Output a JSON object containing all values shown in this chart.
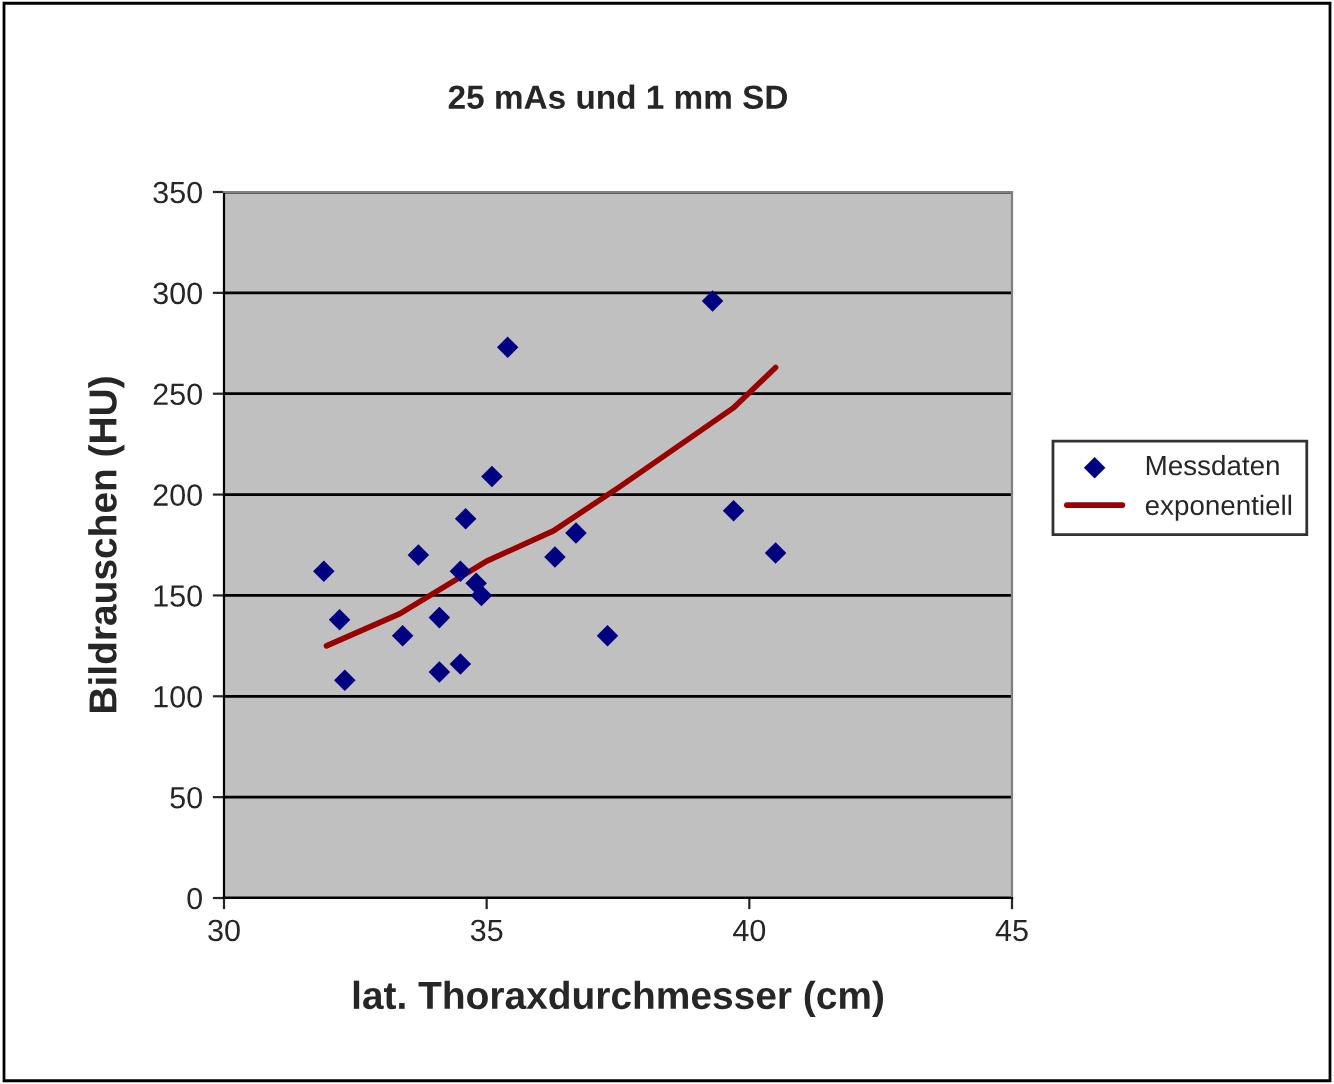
{
  "chart_data": {
    "type": "scatter",
    "title": "25 mAs und 1 mm SD",
    "xlabel": "lat. Thoraxdurchmesser (cm)",
    "ylabel": "Bildrauschen (HU)",
    "xlim": [
      30,
      45
    ],
    "xticks": [
      30,
      35,
      40,
      45
    ],
    "ylim": [
      0,
      350
    ],
    "yticks": [
      0,
      50,
      100,
      150,
      200,
      250,
      300,
      350
    ],
    "grid": "y",
    "legend": "right",
    "series": [
      {
        "name": "Messdaten",
        "marker": "diamond",
        "color": "#000080",
        "x": [
          31.9,
          32.2,
          32.3,
          33.4,
          33.7,
          34.1,
          34.1,
          34.5,
          34.5,
          34.6,
          34.8,
          34.9,
          35.1,
          35.4,
          36.3,
          36.7,
          37.3,
          39.3,
          39.7,
          40.5
        ],
        "values": [
          162,
          138,
          108,
          130,
          170,
          139,
          112,
          162,
          116,
          188,
          156,
          150,
          209,
          273,
          169,
          181,
          130,
          296,
          192,
          171
        ]
      },
      {
        "name": "exponentiell",
        "type": "line",
        "line_style": "solid",
        "color": "#990000",
        "x": [
          31.95,
          33.35,
          35.0,
          36.27,
          37.54,
          39.7,
          40.5
        ],
        "values": [
          125,
          141,
          167,
          182,
          204,
          243,
          263
        ]
      }
    ]
  }
}
